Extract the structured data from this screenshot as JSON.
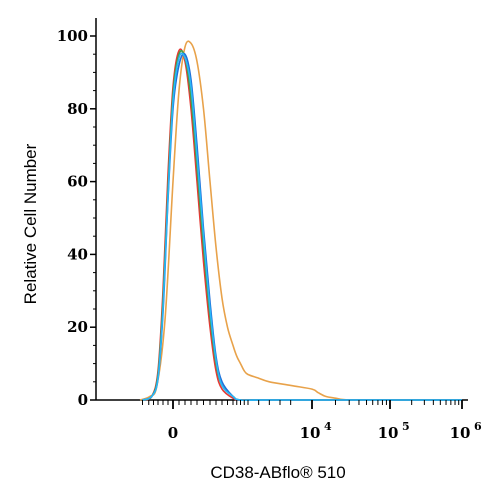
{
  "chart_data": {
    "type": "line",
    "title": "",
    "xlabel": "CD38-ABflo® 510",
    "ylabel": "Relative Cell Number",
    "x_scale": "biexponential",
    "x_tick_labels": [
      {
        "base": "0",
        "exp": ""
      },
      {
        "base": "10",
        "exp": "4"
      },
      {
        "base": "10",
        "exp": "5"
      },
      {
        "base": "10",
        "exp": "6"
      }
    ],
    "ylim": [
      0,
      100
    ],
    "y_ticks": [
      "0",
      "20",
      "40",
      "60",
      "80",
      "100"
    ],
    "grid": false,
    "legend": "none",
    "series": [
      {
        "color": "#e8a24a",
        "x": [
          -3200,
          -2400,
          -1600,
          -800,
          0,
          500,
          1000,
          1500,
          2000,
          2500,
          3000,
          3500,
          4000,
          4500,
          5000,
          5500,
          6000,
          6500,
          7000,
          7500,
          8000,
          9000,
          10000,
          12000,
          15000,
          20000,
          30000,
          100000,
          1000000
        ],
        "values": [
          0,
          1,
          4,
          22,
          60,
          85,
          97,
          98,
          93,
          80,
          60,
          42,
          28,
          20,
          15,
          12,
          10,
          8,
          7,
          6,
          5,
          4,
          3,
          2,
          1,
          0.5,
          0,
          0,
          0
        ]
      },
      {
        "color": "#e53935",
        "x": [
          -3000,
          -2200,
          -1500,
          -1000,
          -500,
          0,
          500,
          1000,
          1500,
          2000,
          2500,
          3000,
          3500,
          4000,
          5000,
          6000,
          8000,
          1000000
        ],
        "values": [
          0,
          1,
          8,
          30,
          62,
          86,
          96,
          93,
          80,
          60,
          38,
          20,
          8,
          3,
          0.5,
          0,
          0,
          0
        ]
      },
      {
        "color": "#43a047",
        "x": [
          -3000,
          -2200,
          -1500,
          -1000,
          -500,
          0,
          500,
          1000,
          1500,
          2000,
          2500,
          3000,
          3500,
          4000,
          5000,
          6000,
          8000,
          1000000
        ],
        "values": [
          0,
          1,
          7,
          27,
          58,
          84,
          95,
          94,
          83,
          64,
          42,
          23,
          10,
          4,
          1,
          0,
          0,
          0
        ]
      },
      {
        "color": "#1e6fd9",
        "x": [
          -3000,
          -2200,
          -1500,
          -1000,
          -500,
          0,
          500,
          1000,
          1500,
          2000,
          2500,
          3000,
          3500,
          4000,
          5000,
          6000,
          8000,
          1000000
        ],
        "values": [
          0,
          1,
          6,
          24,
          55,
          80,
          92,
          95,
          88,
          70,
          47,
          27,
          12,
          5,
          1,
          0,
          0,
          0
        ]
      },
      {
        "color": "#29b6f6",
        "x": [
          -3000,
          -2200,
          -1500,
          -1000,
          -500,
          0,
          500,
          1000,
          1500,
          2000,
          2500,
          3000,
          3500,
          4000,
          5000,
          6000,
          8000,
          1000000
        ],
        "values": [
          0,
          1,
          6,
          25,
          56,
          82,
          94,
          94,
          86,
          67,
          45,
          25,
          11,
          4,
          1,
          0,
          0,
          0
        ]
      }
    ]
  }
}
